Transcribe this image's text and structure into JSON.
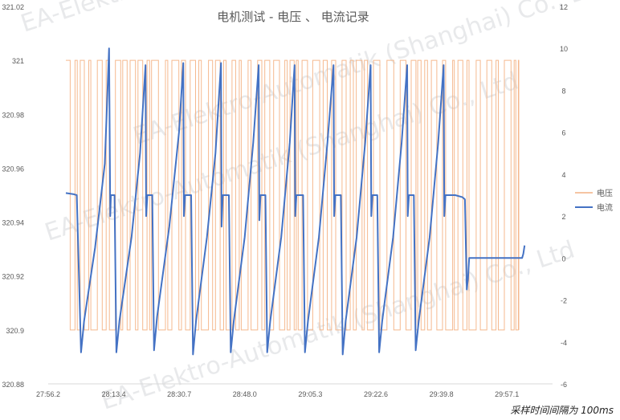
{
  "chart_data": {
    "type": "line",
    "title": "电机测试 - 电压 、 电流记录",
    "y_left_ticks": [
      "321.02",
      "321",
      "320.98",
      "320.96",
      "320.94",
      "320.92",
      "320.9",
      "320.88"
    ],
    "y_left_range": [
      320.88,
      321.02
    ],
    "y_right_ticks": [
      "12",
      "10",
      "8",
      "6",
      "4",
      "2",
      "0",
      "-2",
      "-4",
      "-6"
    ],
    "y_right_range": [
      -6,
      12
    ],
    "x_ticks": [
      "27:56.2",
      "28:13.4",
      "28:30.7",
      "28:48.0",
      "29:05.3",
      "29:22.6",
      "29:39.8",
      "29:57.1"
    ],
    "grid": false,
    "legend_position": "right",
    "series": [
      {
        "name": "电压",
        "axis": "left",
        "color": "#f4b183",
        "levels": [
          320.9,
          321.0
        ],
        "description_values": "switches between 320.9 and 321"
      },
      {
        "name": "电流",
        "axis": "right",
        "color": "#4472c4",
        "points": [
          [
            0.0,
            3.1
          ],
          [
            0.6,
            3.05
          ],
          [
            0.9,
            3.0
          ],
          [
            1.25,
            -4.5
          ],
          [
            1.5,
            -3.0
          ],
          [
            2.4,
            0.5
          ],
          [
            3.2,
            4.5
          ],
          [
            3.55,
            10.0
          ],
          [
            3.65,
            2.0
          ],
          [
            3.7,
            3.0
          ],
          [
            4.0,
            3.0
          ],
          [
            4.15,
            -4.5
          ],
          [
            4.4,
            -3.0
          ],
          [
            5.4,
            1.0
          ],
          [
            6.1,
            5.0
          ],
          [
            6.55,
            9.2
          ],
          [
            6.6,
            2.0
          ],
          [
            6.7,
            3.0
          ],
          [
            7.1,
            3.0
          ],
          [
            7.25,
            -4.4
          ],
          [
            7.5,
            -2.8
          ],
          [
            8.5,
            1.5
          ],
          [
            9.3,
            6.0
          ],
          [
            9.65,
            9.3
          ],
          [
            9.7,
            2.0
          ],
          [
            9.8,
            3.0
          ],
          [
            10.3,
            3.0
          ],
          [
            10.45,
            -4.6
          ],
          [
            10.7,
            -3.0
          ],
          [
            11.6,
            1.0
          ],
          [
            12.3,
            5.0
          ],
          [
            12.75,
            9.3
          ],
          [
            12.8,
            1.5
          ],
          [
            12.9,
            3.0
          ],
          [
            13.4,
            3.0
          ],
          [
            13.55,
            -4.5
          ],
          [
            13.8,
            -3.0
          ],
          [
            14.7,
            1.0
          ],
          [
            15.4,
            5.5
          ],
          [
            15.85,
            9.2
          ],
          [
            15.9,
            1.8
          ],
          [
            16.0,
            3.0
          ],
          [
            16.4,
            3.0
          ],
          [
            16.55,
            -4.5
          ],
          [
            16.8,
            -3.0
          ],
          [
            17.7,
            1.0
          ],
          [
            18.4,
            5.5
          ],
          [
            18.8,
            9.2
          ],
          [
            18.85,
            2.0
          ],
          [
            18.95,
            3.0
          ],
          [
            19.5,
            3.0
          ],
          [
            19.65,
            -4.5
          ],
          [
            19.9,
            -3.0
          ],
          [
            20.8,
            1.0
          ],
          [
            21.5,
            5.5
          ],
          [
            22.0,
            9.2
          ],
          [
            22.05,
            2.0
          ],
          [
            22.15,
            3.0
          ],
          [
            22.6,
            3.0
          ],
          [
            22.75,
            -4.6
          ],
          [
            23.0,
            -3.0
          ],
          [
            23.9,
            1.0
          ],
          [
            24.6,
            5.5
          ],
          [
            25.05,
            9.2
          ],
          [
            25.1,
            2.0
          ],
          [
            25.2,
            3.0
          ],
          [
            25.6,
            3.0
          ],
          [
            25.75,
            -4.5
          ],
          [
            26.0,
            -3.0
          ],
          [
            26.9,
            1.0
          ],
          [
            27.6,
            5.5
          ],
          [
            28.05,
            9.2
          ],
          [
            28.1,
            2.0
          ],
          [
            28.2,
            3.0
          ],
          [
            28.6,
            3.0
          ],
          [
            28.75,
            -4.4
          ],
          [
            29.0,
            -3.0
          ],
          [
            29.9,
            1.0
          ],
          [
            30.6,
            5.5
          ],
          [
            31.05,
            9.2
          ],
          [
            31.1,
            2.0
          ],
          [
            31.2,
            3.0
          ],
          [
            32.0,
            3.0
          ],
          [
            32.6,
            2.9
          ],
          [
            32.8,
            2.8
          ],
          [
            32.95,
            -1.5
          ],
          [
            33.05,
            -1.0
          ],
          [
            33.15,
            0.0
          ],
          [
            37.5,
            0.0
          ],
          [
            37.6,
            0.2
          ],
          [
            37.7,
            0.6
          ]
        ]
      }
    ]
  },
  "watermark": "EA-Elektro-Automatik (Shanghai) Co., Ltd",
  "footnote": "采样时间间隔为 100ms"
}
